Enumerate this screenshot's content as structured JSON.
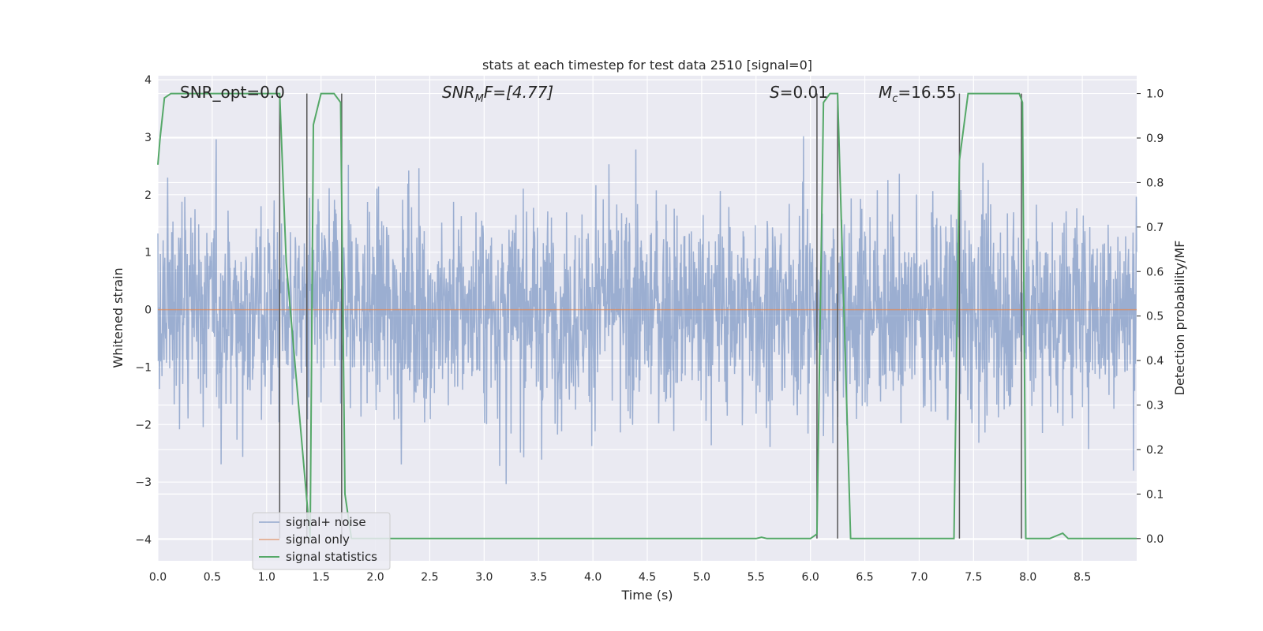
{
  "chart_data": {
    "type": "line",
    "title": "stats at each timestep for test data 2510 [signal=0]",
    "xlabel": "Time (s)",
    "ylabel_left": "Whitened strain",
    "ylabel_right": "Detection probability/MF",
    "xlim": [
      0,
      9.0
    ],
    "ylim_left": [
      -4.37,
      4.07
    ],
    "ylim_right": [
      -0.05,
      1.04
    ],
    "grid": true,
    "legend_position": "lower-left",
    "x_ticks": [
      "0.0",
      "0.5",
      "1.0",
      "1.5",
      "2.0",
      "2.5",
      "3.0",
      "3.5",
      "4.0",
      "4.5",
      "5.0",
      "5.5",
      "6.0",
      "6.5",
      "7.0",
      "7.5",
      "8.0",
      "8.5"
    ],
    "y_ticks_left": [
      "4",
      "3",
      "2",
      "1",
      "0",
      "−1",
      "−2",
      "−3",
      "−4"
    ],
    "y_ticks_right": [
      "1.0",
      "0.9",
      "0.8",
      "0.7",
      "0.6",
      "0.5",
      "0.4",
      "0.3",
      "0.2",
      "0.1",
      "0.0"
    ],
    "annotations": [
      {
        "text": "SNR_opt=0.0"
      },
      {
        "text": "SNR",
        "sub": "M",
        "tail": "F=[4.77]"
      },
      {
        "text": "S",
        "tail": "=0.01"
      },
      {
        "text": "M",
        "sub": "c",
        "tail": "=16.55"
      }
    ],
    "series": [
      {
        "name": "signal+ noise",
        "color": "#4c72b0",
        "note": "dense noise trace, amplitude bounds approx",
        "amplitude_range": [
          -3.5,
          3.4
        ]
      },
      {
        "name": "signal only",
        "color": "#dd8452",
        "x": [
          0,
          9.0
        ],
        "y": [
          0,
          0
        ]
      },
      {
        "name": "signal statistics",
        "color": "#55a868",
        "x": [
          0.0,
          0.02,
          0.06,
          0.12,
          0.2,
          1.12,
          1.18,
          1.4,
          1.43,
          1.5,
          1.62,
          1.68,
          1.72,
          1.78,
          5.5,
          5.55,
          5.6,
          6.0,
          6.06,
          6.12,
          6.18,
          6.25,
          6.37,
          7.32,
          7.37,
          7.45,
          7.92,
          7.95,
          7.98,
          8.2,
          8.32,
          8.37,
          9.0
        ],
        "y": [
          0.84,
          0.9,
          0.99,
          1.0,
          1.0,
          1.0,
          0.62,
          0.0,
          0.93,
          1.0,
          1.0,
          0.98,
          0.1,
          0.0,
          0.0,
          0.003,
          0.0,
          0.0,
          0.01,
          0.98,
          1.0,
          1.0,
          0.0,
          0.0,
          0.85,
          1.0,
          1.0,
          0.98,
          0.0,
          0.0,
          0.012,
          0.0,
          0.0
        ]
      }
    ],
    "vertical_markers_x": [
      1.12,
      1.37,
      1.69,
      6.06,
      6.25,
      7.37,
      7.94
    ]
  },
  "legend": {
    "items": [
      {
        "label": "signal+ noise",
        "color": "#4c72b0"
      },
      {
        "label": "signal only",
        "color": "#dd8452"
      },
      {
        "label": "signal statistics",
        "color": "#55a868"
      }
    ]
  }
}
